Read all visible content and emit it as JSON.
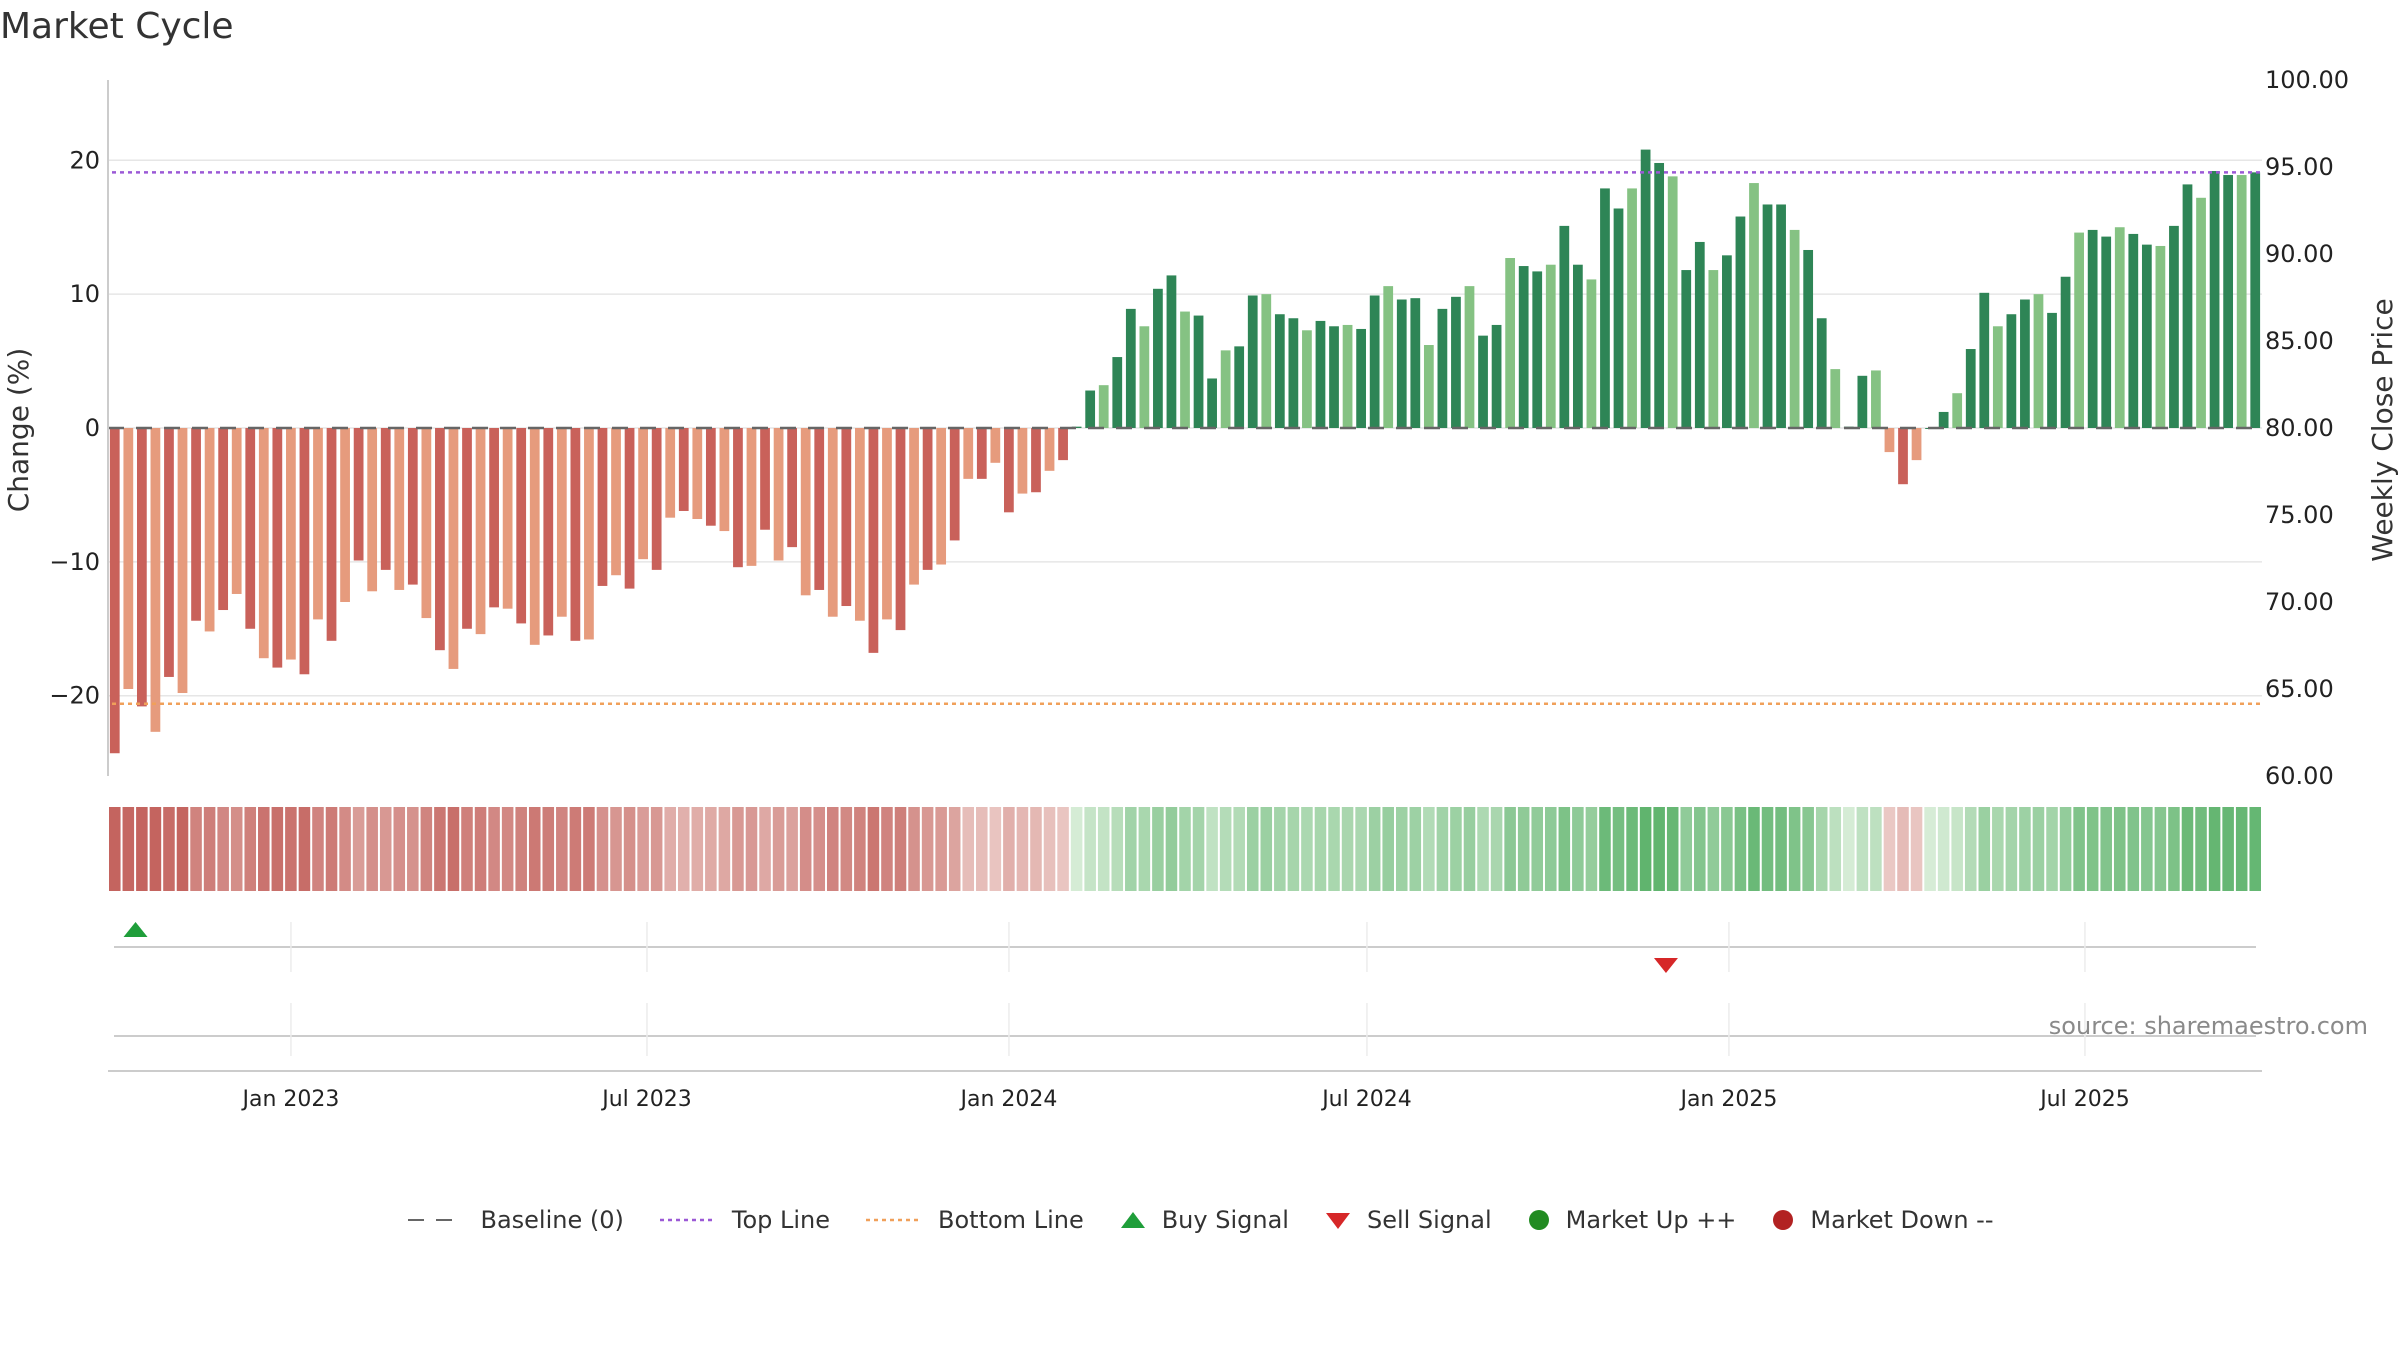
{
  "title": "Market Cycle",
  "source": "source: sharemaestro.com",
  "colors": {
    "neg_dark": "#c9615a",
    "neg_light": "#e69b7d",
    "pos_dark": "#2e8556",
    "pos_light": "#85c283",
    "top_line": "#9b59d6",
    "bottom_line": "#f0a05a",
    "baseline": "#666666",
    "buy": "#1f9e3a",
    "sell": "#d62728",
    "market_up": "#228b22",
    "market_down": "#b22222",
    "grid": "#e6e6e6"
  },
  "chart_data": {
    "type": "bar",
    "title": "Market Cycle",
    "ylabel": "Change (%)",
    "y2label": "Weekly Close Price",
    "ylim": [
      -26,
      26
    ],
    "y_ticks": [
      "20",
      "10",
      "0",
      "−10",
      "−20"
    ],
    "y_tick_values": [
      20,
      10,
      0,
      -10,
      -20
    ],
    "y2lim": [
      60,
      100
    ],
    "y2_ticks": [
      "100.00",
      "95.00",
      "90.00",
      "85.00",
      "80.00",
      "75.00",
      "70.00",
      "65.00",
      "60.00"
    ],
    "y2_tick_values": [
      100,
      95,
      90,
      85,
      80,
      75,
      70,
      65,
      60
    ],
    "x_start": "2022-09-30",
    "x_end": "2025-09-29",
    "x_ticks": [
      {
        "label": "Jan 2023",
        "date": "2023-01-01"
      },
      {
        "label": "Jul 2023",
        "date": "2023-07-01"
      },
      {
        "label": "Jan 2024",
        "date": "2024-01-01"
      },
      {
        "label": "Jul 2024",
        "date": "2024-07-01"
      },
      {
        "label": "Jan 2025",
        "date": "2025-01-01"
      },
      {
        "label": "Jul 2025",
        "date": "2025-07-01"
      }
    ],
    "top_line": 19.1,
    "bottom_line": -20.6,
    "baseline": 0,
    "values": [
      -24.3,
      -19.5,
      -20.8,
      -22.7,
      -18.6,
      -19.8,
      -14.4,
      -15.2,
      -13.6,
      -12.4,
      -15.0,
      -17.2,
      -17.9,
      -17.3,
      -18.4,
      -14.3,
      -15.9,
      -13.0,
      -9.9,
      -12.2,
      -10.6,
      -12.1,
      -11.7,
      -14.2,
      -16.6,
      -18.0,
      -15.0,
      -15.4,
      -13.4,
      -13.5,
      -14.6,
      -16.2,
      -15.5,
      -14.1,
      -15.9,
      -15.8,
      -11.8,
      -11.0,
      -12.0,
      -9.8,
      -10.6,
      -6.7,
      -6.2,
      -6.8,
      -7.3,
      -7.7,
      -10.4,
      -10.3,
      -7.6,
      -9.9,
      -8.9,
      -12.5,
      -12.1,
      -14.1,
      -13.3,
      -14.4,
      -16.8,
      -14.3,
      -15.1,
      -11.7,
      -10.6,
      -10.2,
      -8.4,
      -3.8,
      -3.8,
      -2.6,
      -6.3,
      -4.9,
      -4.8,
      -3.2,
      -2.4,
      0.1,
      2.8,
      3.2,
      5.3,
      8.9,
      7.6,
      10.4,
      11.4,
      8.7,
      8.4,
      3.7,
      5.8,
      6.1,
      9.9,
      10.0,
      8.5,
      8.2,
      7.3,
      8.0,
      7.6,
      7.7,
      7.4,
      9.9,
      10.6,
      9.6,
      9.7,
      6.2,
      8.9,
      9.8,
      10.6,
      6.9,
      7.7,
      12.7,
      12.1,
      11.7,
      12.2,
      15.1,
      12.2,
      11.1,
      17.9,
      16.4,
      17.9,
      20.8,
      19.8,
      18.8,
      11.8,
      13.9,
      11.8,
      12.9,
      15.8,
      18.3,
      16.7,
      16.7,
      14.8,
      13.3,
      8.2,
      4.4,
      0.1,
      3.9,
      4.3,
      -1.8,
      -4.2,
      -2.4,
      0.0,
      1.2,
      2.6,
      5.9,
      10.1,
      7.6,
      8.5,
      9.6,
      10.0,
      8.6,
      11.3,
      14.6,
      14.8,
      14.3,
      15.0,
      14.5,
      13.7,
      13.6,
      15.1,
      18.2,
      17.2,
      19.2,
      18.9,
      18.9,
      19.1
    ],
    "signals": [
      {
        "type": "buy",
        "date": "2022-10-14"
      },
      {
        "type": "sell",
        "date": "2024-11-30"
      }
    ]
  },
  "legend": [
    {
      "key": "baseline",
      "label": "Baseline (0)",
      "icon": "dash-line-icon"
    },
    {
      "key": "top_line",
      "label": "Top Line",
      "icon": "dotted-line-icon"
    },
    {
      "key": "bottom_line",
      "label": "Bottom Line",
      "icon": "dotted-line-icon"
    },
    {
      "key": "buy",
      "label": "Buy Signal",
      "icon": "triangle-up-icon"
    },
    {
      "key": "sell",
      "label": "Sell Signal",
      "icon": "triangle-down-icon"
    },
    {
      "key": "market_up",
      "label": "Market Up ++",
      "icon": "circle-icon"
    },
    {
      "key": "market_down",
      "label": "Market Down --",
      "icon": "circle-icon"
    }
  ]
}
